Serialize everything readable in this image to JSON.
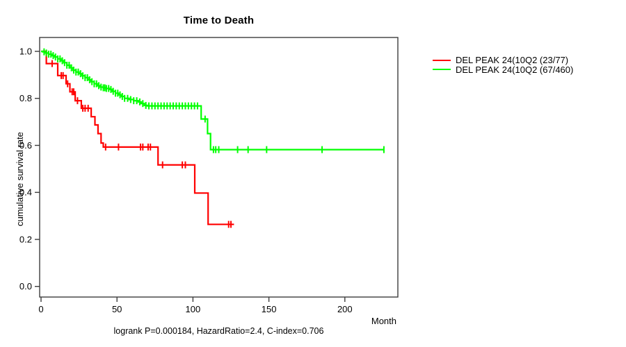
{
  "title": "Time to Death",
  "axes": {
    "ylabel": "cumulative survival rate",
    "xlabel": "Month"
  },
  "caption": "logrank P=0.000184, HazardRatio=2.4, C-index=0.706",
  "stats": {
    "logrank_p": "0.000184",
    "hazard_ratio": "2.4",
    "c_index": "0.706"
  },
  "legend": [
    {
      "label": "DEL PEAK 24(10Q2 (23/77)",
      "color": "#ff0000"
    },
    {
      "label": "DEL PEAK 24(10Q2 (67/460)",
      "color": "#00ff00"
    }
  ],
  "chart_data": {
    "type": "line",
    "subtype": "kaplan-meier-step",
    "title": "Time to Death",
    "xlabel": "Month",
    "ylabel": "cumulative survival rate",
    "xlim": [
      0,
      234
    ],
    "ylim": [
      0,
      1.0
    ],
    "x_ticks": [
      0,
      50,
      100,
      150,
      200
    ],
    "y_ticks": [
      1.0,
      0.8,
      0.6,
      0.4,
      0.2,
      0.0
    ],
    "grid": false,
    "legend_position": "right-outside",
    "annotation": "logrank P=0.000184, HazardRatio=2.4, C-index=0.706",
    "series": [
      {
        "name": "DEL PEAK 24(10Q2 (23/77)",
        "events_over_n": "23/77",
        "color": "#ff0000",
        "end_month": 127,
        "steps": [
          [
            0,
            1.0
          ],
          [
            3.5,
            0.948
          ],
          [
            11,
            0.897
          ],
          [
            16.5,
            0.862
          ],
          [
            19,
            0.828
          ],
          [
            22.5,
            0.79
          ],
          [
            26.5,
            0.758
          ],
          [
            33,
            0.722
          ],
          [
            35.5,
            0.687
          ],
          [
            37.5,
            0.65
          ],
          [
            39.5,
            0.61
          ],
          [
            41,
            0.593
          ],
          [
            77,
            0.517
          ],
          [
            101.2,
            0.397
          ],
          [
            110,
            0.264
          ]
        ],
        "censor_times": [
          7.3,
          13.3,
          14.5,
          17.5,
          20.5,
          21.5,
          24,
          27.5,
          29,
          31,
          42.5,
          51,
          65.5,
          67,
          70.5,
          72,
          80,
          93,
          95,
          123.5,
          125
        ]
      },
      {
        "name": "DEL PEAK 24(10Q2 (67/460)",
        "events_over_n": "67/460",
        "color": "#00ff00",
        "end_month": 225.7,
        "steps": [
          [
            0,
            1.0
          ],
          [
            1,
            0.998
          ],
          [
            3,
            0.993
          ],
          [
            5,
            0.988
          ],
          [
            7,
            0.982
          ],
          [
            9,
            0.976
          ],
          [
            11,
            0.968
          ],
          [
            13,
            0.96
          ],
          [
            15,
            0.952
          ],
          [
            17,
            0.941
          ],
          [
            19,
            0.93
          ],
          [
            21,
            0.92
          ],
          [
            23,
            0.912
          ],
          [
            25,
            0.905
          ],
          [
            27,
            0.896
          ],
          [
            29,
            0.888
          ],
          [
            31,
            0.879
          ],
          [
            33,
            0.871
          ],
          [
            35,
            0.862
          ],
          [
            37,
            0.854
          ],
          [
            39,
            0.848
          ],
          [
            41,
            0.845
          ],
          [
            43,
            0.842
          ],
          [
            45,
            0.838
          ],
          [
            47,
            0.83
          ],
          [
            49,
            0.822
          ],
          [
            51,
            0.815
          ],
          [
            53,
            0.808
          ],
          [
            55,
            0.8
          ],
          [
            58,
            0.795
          ],
          [
            61,
            0.79
          ],
          [
            64,
            0.785
          ],
          [
            66,
            0.778
          ],
          [
            68,
            0.77
          ],
          [
            70,
            0.768
          ],
          [
            105.4,
            0.712
          ],
          [
            109.6,
            0.65
          ],
          [
            111.6,
            0.582
          ]
        ],
        "censor_times": [
          2,
          3.5,
          5,
          6.5,
          8,
          9.5,
          11,
          12.5,
          14,
          15.5,
          17,
          18.5,
          20,
          21.5,
          23,
          24.5,
          26,
          27.5,
          29,
          30.5,
          32,
          33.5,
          35,
          36.5,
          38,
          39.5,
          41,
          42,
          43,
          44.5,
          46,
          47.5,
          49,
          50.5,
          52,
          53.5,
          55,
          57,
          59,
          61,
          63,
          65,
          67,
          69,
          71,
          73,
          75,
          77,
          79,
          81,
          83,
          85,
          87,
          89,
          91,
          93,
          95,
          97,
          99,
          101,
          103,
          108,
          113.5,
          115,
          117,
          129.4,
          136.3,
          148.5,
          185,
          225.7
        ]
      }
    ]
  }
}
